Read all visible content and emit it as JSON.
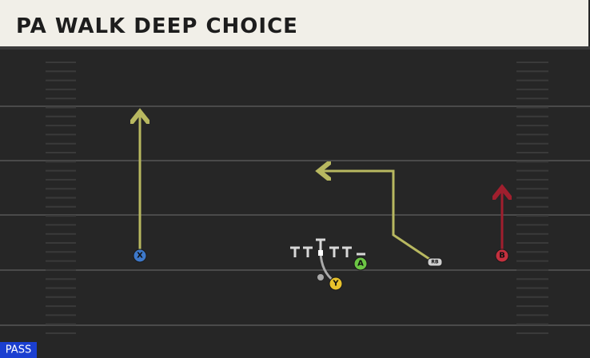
{
  "header": {
    "title": "PA WALK DEEP CHOICE"
  },
  "players": [
    {
      "label": "X"
    },
    {
      "label": "Y"
    },
    {
      "label": "A"
    },
    {
      "label": "B"
    },
    {
      "label": "RB"
    }
  ],
  "play_type": "PASS"
}
